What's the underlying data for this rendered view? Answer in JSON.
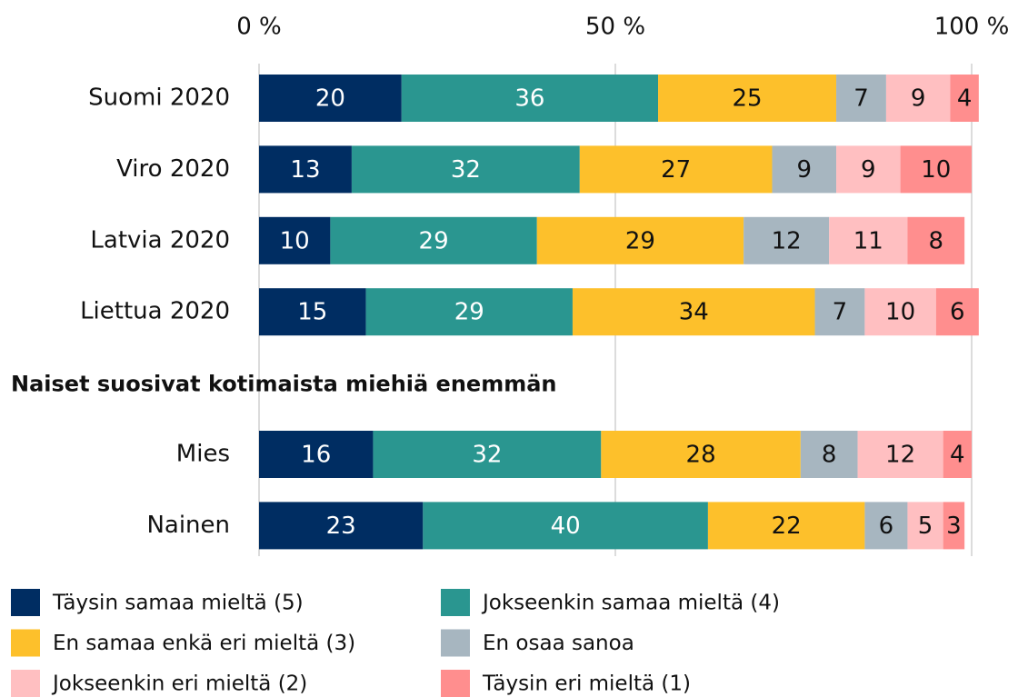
{
  "chart_data": {
    "type": "stacked-bar",
    "orientation": "horizontal",
    "categories": [
      "Suomi 2020",
      "Viro 2020",
      "Latvia 2020",
      "Liettua 2020",
      null,
      "Mies",
      "Nainen"
    ],
    "subheading": "Naiset suosivat kotimaista miehiä enemmän",
    "xlim": [
      0,
      100
    ],
    "xticks": [
      {
        "value": 0,
        "label": "0 %"
      },
      {
        "value": 50,
        "label": "50 %"
      },
      {
        "value": 100,
        "label": "100 %"
      }
    ],
    "grid": true,
    "legend": "bottom",
    "series": [
      {
        "name": "Täysin samaa mieltä (5)",
        "color": "#002d62",
        "text_color": "#ffffff",
        "values": [
          20,
          13,
          10,
          15,
          null,
          16,
          23
        ]
      },
      {
        "name": "Jokseenkin samaa mieltä (4)",
        "color": "#2a9690",
        "text_color": "#ffffff",
        "values": [
          36,
          32,
          29,
          29,
          null,
          32,
          40
        ]
      },
      {
        "name": "En samaa enkä eri mieltä (3)",
        "color": "#fdc02b",
        "text_color": "#111111",
        "values": [
          25,
          27,
          29,
          34,
          null,
          28,
          22
        ]
      },
      {
        "name": "En osaa sanoa",
        "color": "#a7b6c0",
        "text_color": "#111111",
        "values": [
          7,
          9,
          12,
          7,
          null,
          8,
          6
        ]
      },
      {
        "name": "Jokseenkin eri mieltä (2)",
        "color": "#ffbfc1",
        "text_color": "#111111",
        "values": [
          9,
          9,
          11,
          10,
          null,
          12,
          5
        ]
      },
      {
        "name": "Täysin eri mieltä (1)",
        "color": "#ff8e8e",
        "text_color": "#111111",
        "values": [
          4,
          10,
          8,
          6,
          null,
          4,
          3
        ]
      }
    ]
  }
}
